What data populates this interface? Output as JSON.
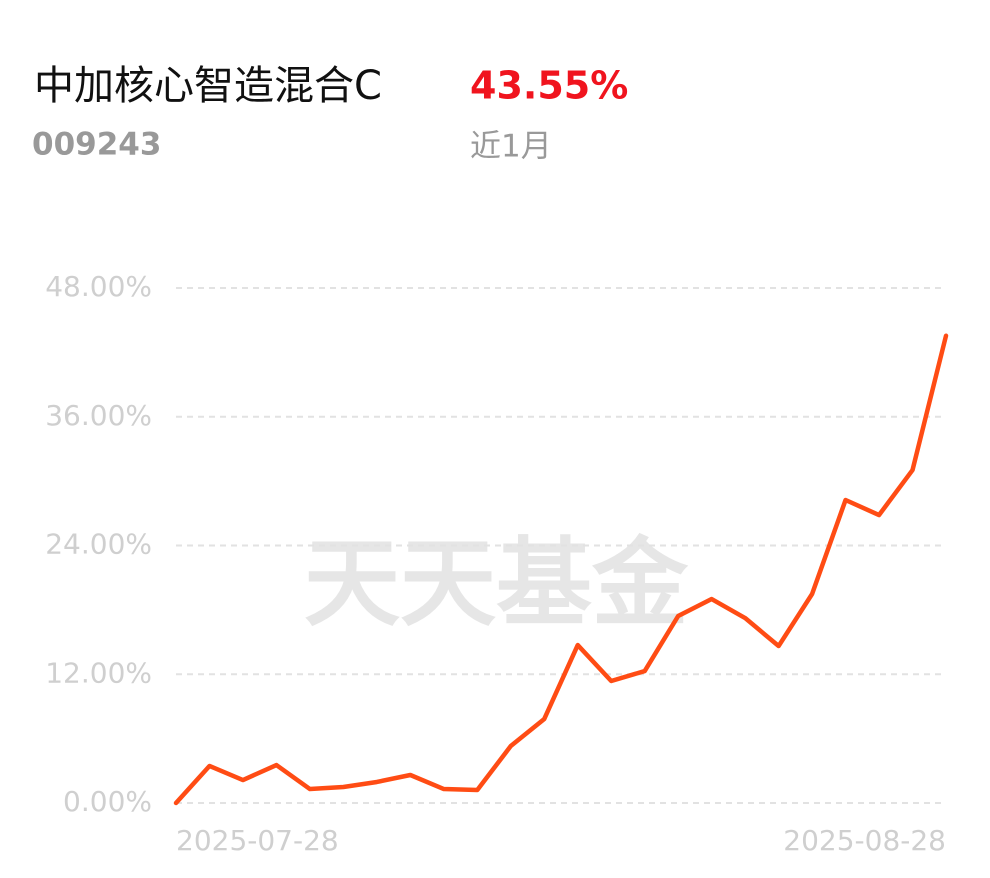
{
  "header": {
    "title": "中加核心智造混合C",
    "code": "009243",
    "return": "43.55%",
    "period": "近1月"
  },
  "watermark": "天天基金",
  "chart_data": {
    "type": "line",
    "categories": [
      "2025-07-28",
      null,
      null,
      null,
      null,
      null,
      null,
      null,
      null,
      null,
      null,
      null,
      null,
      null,
      null,
      null,
      null,
      null,
      null,
      null,
      null,
      null,
      null,
      "2025-08-28"
    ],
    "series": [
      {
        "color": "#ff4c14",
        "values": [
          0,
          3.45,
          2.14,
          3.54,
          1.3,
          1.49,
          1.96,
          2.61,
          1.3,
          1.21,
          5.31,
          7.83,
          14.72,
          11.37,
          12.3,
          17.43,
          19.01,
          17.24,
          14.63,
          19.48,
          28.24,
          26.84,
          31.03,
          43.55
        ]
      }
    ],
    "ylim": [
      0,
      48
    ],
    "yticks": [
      {
        "value": 0,
        "label": "0.00%"
      },
      {
        "value": 12,
        "label": "12.00%"
      },
      {
        "value": 24,
        "label": "24.00%"
      },
      {
        "value": 36,
        "label": "36.00%"
      },
      {
        "value": 48,
        "label": "48.00%"
      }
    ],
    "grid": true
  }
}
